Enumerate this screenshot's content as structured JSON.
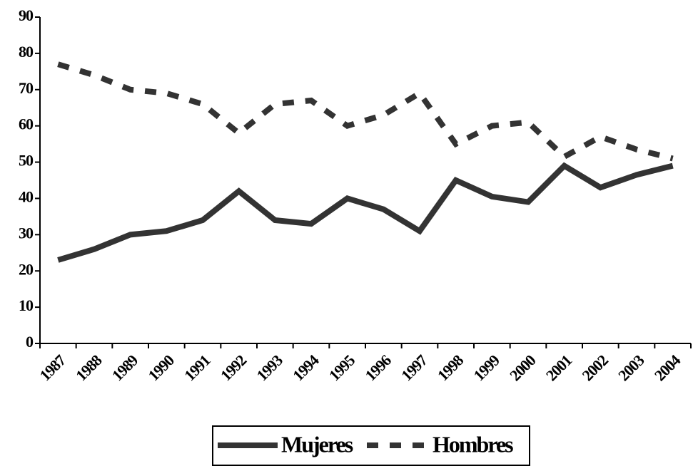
{
  "chart_data": {
    "type": "line",
    "categories": [
      "1987",
      "1988",
      "1989",
      "1990",
      "1991",
      "1992",
      "1993",
      "1994",
      "1995",
      "1996",
      "1997",
      "1998",
      "1999",
      "2000",
      "2001",
      "2002",
      "2003",
      "2004"
    ],
    "series": [
      {
        "name": "Mujeres",
        "color": "#333333",
        "dashed": false,
        "values": [
          23,
          26,
          30,
          31,
          34,
          42,
          34,
          33,
          40,
          37,
          31,
          45,
          40.5,
          39,
          49,
          43,
          46.5,
          49
        ]
      },
      {
        "name": "Hombres",
        "color": "#333333",
        "dashed": true,
        "values": [
          77,
          74,
          70,
          69,
          66,
          58,
          66,
          67,
          60,
          63,
          69,
          55,
          60,
          61,
          51.5,
          57,
          53.5,
          51
        ]
      }
    ],
    "ylim": [
      0,
      90
    ],
    "yticks": [
      0,
      10,
      20,
      30,
      40,
      50,
      60,
      70,
      80,
      90
    ],
    "grid": false,
    "legend": "bottom"
  }
}
